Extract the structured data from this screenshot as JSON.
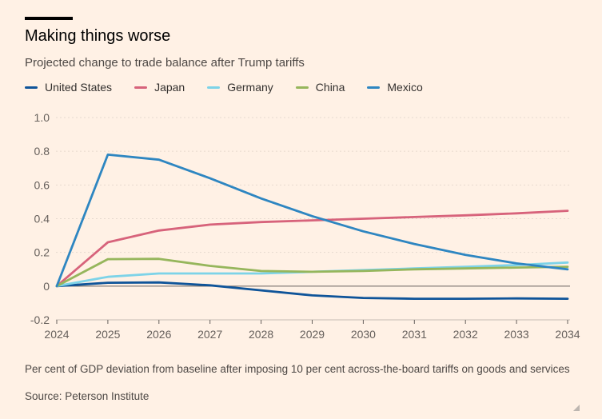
{
  "title": "Making things worse",
  "subtitle": "Projected change to trade balance after Trump tariffs",
  "footnote": "Per cent of GDP deviation from baseline after imposing 10 per cent across-the-board tariffs on goods and services",
  "source": "Source: Peterson Institute",
  "chart_data": {
    "type": "line",
    "x": [
      2024,
      2025,
      2026,
      2027,
      2028,
      2029,
      2030,
      2031,
      2032,
      2033,
      2034
    ],
    "ylim": [
      -0.2,
      1.0
    ],
    "yticks": [
      1.0,
      0.8,
      0.6,
      0.4,
      0.2,
      0,
      -0.2
    ],
    "ytick_labels": [
      "1.0",
      "0.8",
      "0.6",
      "0.4",
      "0.2",
      "0",
      "-0.2"
    ],
    "grid": true,
    "legend_position": "top-left",
    "series": [
      {
        "name": "United States",
        "color": "#0f5499",
        "values": [
          0,
          0.02,
          0.022,
          0.005,
          -0.025,
          -0.055,
          -0.07,
          -0.075,
          -0.075,
          -0.073,
          -0.075
        ]
      },
      {
        "name": "Japan",
        "color": "#d7637b",
        "values": [
          0,
          0.26,
          0.33,
          0.365,
          0.38,
          0.39,
          0.4,
          0.41,
          0.42,
          0.432,
          0.447
        ]
      },
      {
        "name": "Germany",
        "color": "#7dd3e8",
        "values": [
          0,
          0.055,
          0.075,
          0.075,
          0.075,
          0.085,
          0.095,
          0.105,
          0.115,
          0.125,
          0.14
        ]
      },
      {
        "name": "China",
        "color": "#96b65c",
        "values": [
          0,
          0.16,
          0.162,
          0.12,
          0.09,
          0.085,
          0.09,
          0.1,
          0.105,
          0.11,
          0.115
        ]
      },
      {
        "name": "Mexico",
        "color": "#2e86c1",
        "values": [
          0,
          0.78,
          0.75,
          0.64,
          0.52,
          0.415,
          0.325,
          0.25,
          0.185,
          0.135,
          0.1
        ]
      }
    ]
  }
}
